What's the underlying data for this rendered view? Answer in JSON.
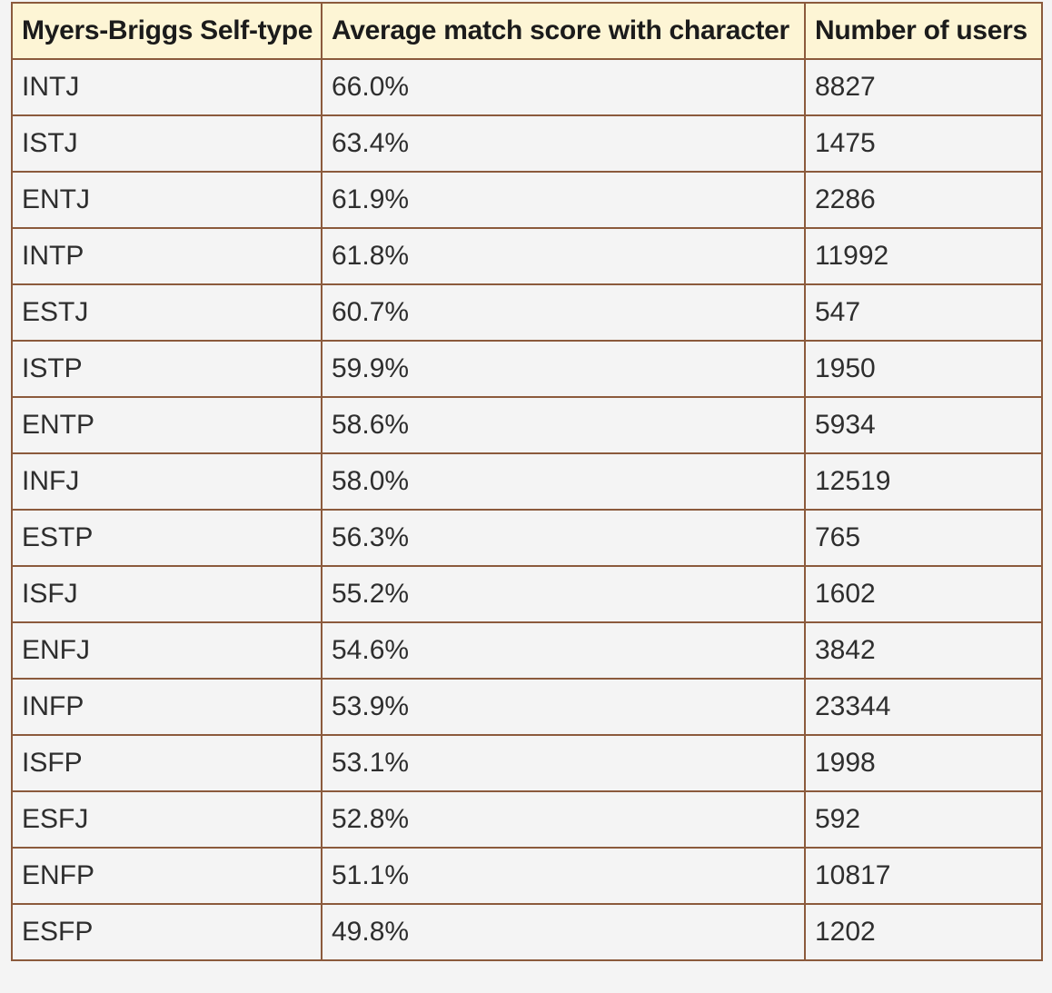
{
  "table": {
    "headers": [
      "Myers-Briggs Self-type",
      "Average match score with character",
      "Number of users"
    ],
    "rows": [
      [
        "INTJ",
        "66.0%",
        "8827"
      ],
      [
        "ISTJ",
        "63.4%",
        "1475"
      ],
      [
        "ENTJ",
        "61.9%",
        "2286"
      ],
      [
        "INTP",
        "61.8%",
        "11992"
      ],
      [
        "ESTJ",
        "60.7%",
        "547"
      ],
      [
        "ISTP",
        "59.9%",
        "1950"
      ],
      [
        "ENTP",
        "58.6%",
        "5934"
      ],
      [
        "INFJ",
        "58.0%",
        "12519"
      ],
      [
        "ESTP",
        "56.3%",
        "765"
      ],
      [
        "ISFJ",
        "55.2%",
        "1602"
      ],
      [
        "ENFJ",
        "54.6%",
        "3842"
      ],
      [
        "INFP",
        "53.9%",
        "23344"
      ],
      [
        "ISFP",
        "53.1%",
        "1998"
      ],
      [
        "ESFJ",
        "52.8%",
        "592"
      ],
      [
        "ENFP",
        "51.1%",
        "10817"
      ],
      [
        "ESFP",
        "49.8%",
        "1202"
      ]
    ]
  },
  "colors": {
    "header_background": "#fdf5d5",
    "border": "#8b5a3c",
    "cell_background": "#f4f4f4"
  }
}
